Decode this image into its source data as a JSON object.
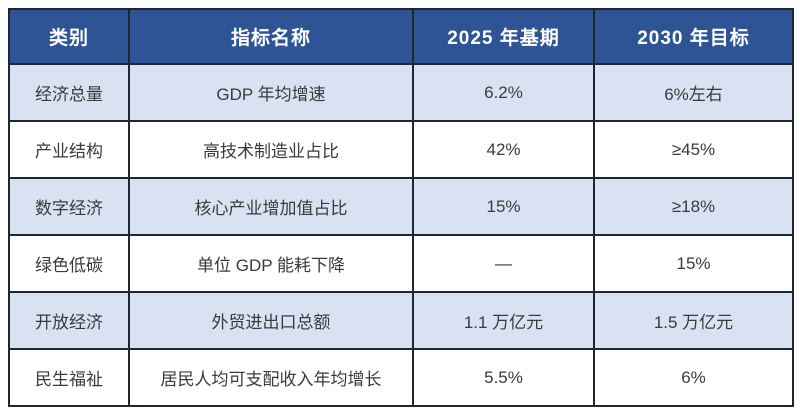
{
  "table": {
    "title": "indicator-plan-table",
    "headers": [
      "类别",
      "指标名称",
      "2025 年基期",
      "2030 年目标"
    ],
    "rows": [
      [
        "经济总量",
        "GDP 年均增速",
        "6.2%",
        "6%左右"
      ],
      [
        "产业结构",
        "高技术制造业占比",
        "42%",
        "≥45%"
      ],
      [
        "数字经济",
        "核心产业增加值占比",
        "15%",
        "≥18%"
      ],
      [
        "绿色低碳",
        "单位 GDP 能耗下降",
        "—",
        "15%"
      ],
      [
        "开放经济",
        "外贸进出口总额",
        "1.1 万亿元",
        "1.5 万亿元"
      ],
      [
        "民生福祉",
        "居民人均可支配收入年均增长",
        "5.5%",
        "6%"
      ]
    ],
    "colors": {
      "header_bg": "#2F5496",
      "header_text": "#FFFFFF",
      "row_alt_bg": "#D9E2F3",
      "row_bg": "#FFFFFF",
      "border": "#1F2630",
      "cell_text": "#3A3A3A"
    }
  }
}
